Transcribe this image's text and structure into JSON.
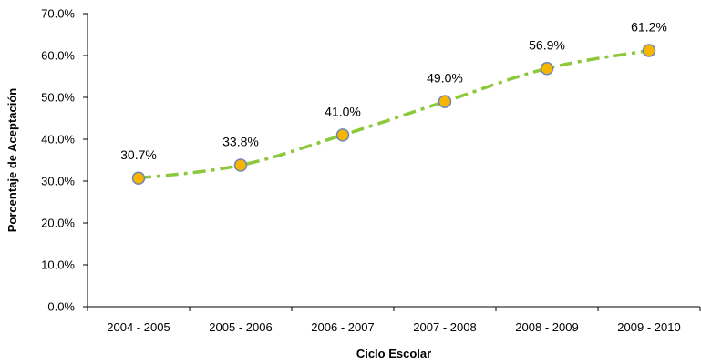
{
  "chart_data": {
    "type": "line",
    "title": "",
    "xlabel": "Ciclo Escolar",
    "ylabel": "Porcentaje de Aceptación",
    "categories": [
      "2004 - 2005",
      "2005 - 2006",
      "2006 - 2007",
      "2007 - 2008",
      "2008 - 2009",
      "2009 - 2010"
    ],
    "series": [
      {
        "values": [
          30.7,
          33.8,
          41.0,
          49.0,
          56.9,
          61.2
        ]
      }
    ],
    "data_labels": [
      "30.7%",
      "33.8%",
      "41.0%",
      "49.0%",
      "56.9%",
      "61.2%"
    ],
    "y_ticks": [
      "0.0%",
      "10.0%",
      "20.0%",
      "30.0%",
      "40.0%",
      "50.0%",
      "60.0%",
      "70.0%"
    ],
    "ylim": [
      0,
      70
    ],
    "grid": false,
    "legend": "none",
    "colors": {
      "line": "#8cc83c",
      "marker_fill": "#f7b500",
      "marker_stroke": "#6a86b8",
      "axis": "#000000"
    }
  }
}
